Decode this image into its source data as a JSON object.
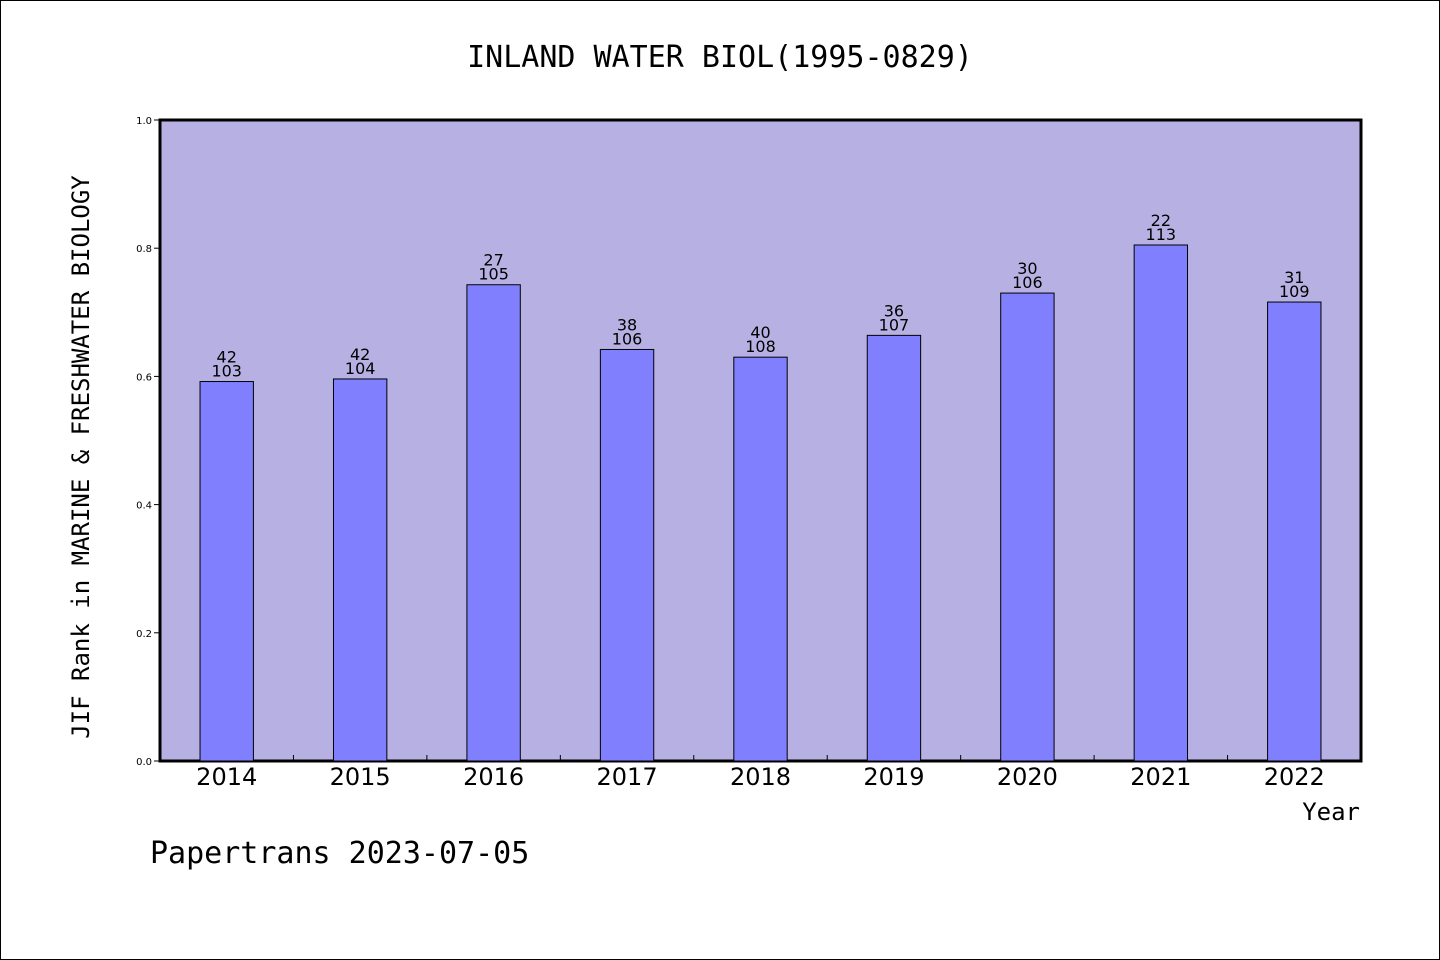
{
  "chart_data": {
    "type": "bar",
    "title": "INLAND WATER BIOL(1995-0829)",
    "xlabel": "Year",
    "ylabel": "JIF Rank in MARINE & FRESHWATER BIOLOGY",
    "categories": [
      "2014",
      "2015",
      "2016",
      "2017",
      "2018",
      "2019",
      "2020",
      "2021",
      "2022"
    ],
    "values": [
      0.592,
      0.596,
      0.743,
      0.642,
      0.63,
      0.664,
      0.73,
      0.805,
      0.716
    ],
    "rank": [
      "42",
      "42",
      "27",
      "38",
      "40",
      "36",
      "30",
      "22",
      "31"
    ],
    "total": [
      "103",
      "104",
      "105",
      "106",
      "108",
      "107",
      "106",
      "113",
      "109"
    ],
    "ylim": [
      0,
      1.0
    ],
    "yticks": [
      "0.0",
      "0.2",
      "0.4",
      "0.6",
      "0.8",
      "1.0"
    ],
    "grid": false,
    "colors": {
      "plot_bg": "#b7b1e3",
      "bar": "#8080ff",
      "axis": "#000000"
    }
  },
  "footer": {
    "credit": "Papertrans 2023-07-05"
  }
}
